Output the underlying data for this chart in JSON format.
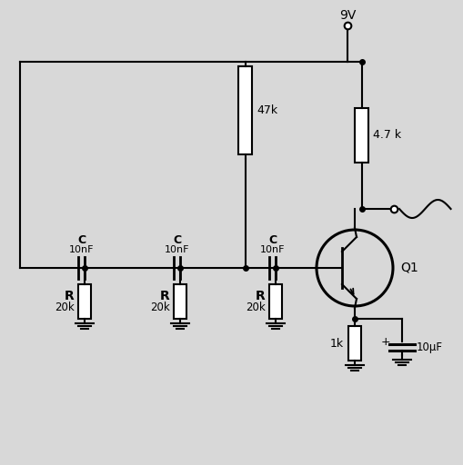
{
  "bg_color": "#d8d8d8",
  "line_color": "#000000",
  "vcc_label": "9V",
  "rb_label": "47k",
  "rc_label": "4.7 k",
  "re_label": "1k",
  "ce_label": "10μF",
  "q_label": "Q1",
  "c_labels": [
    "C",
    "C",
    "C"
  ],
  "c_val_labels": [
    "10nF",
    "10nF",
    "10nF"
  ],
  "r_labels": [
    "R",
    "R",
    "R"
  ],
  "r_val_labels": [
    "20k",
    "20k",
    "20k"
  ]
}
